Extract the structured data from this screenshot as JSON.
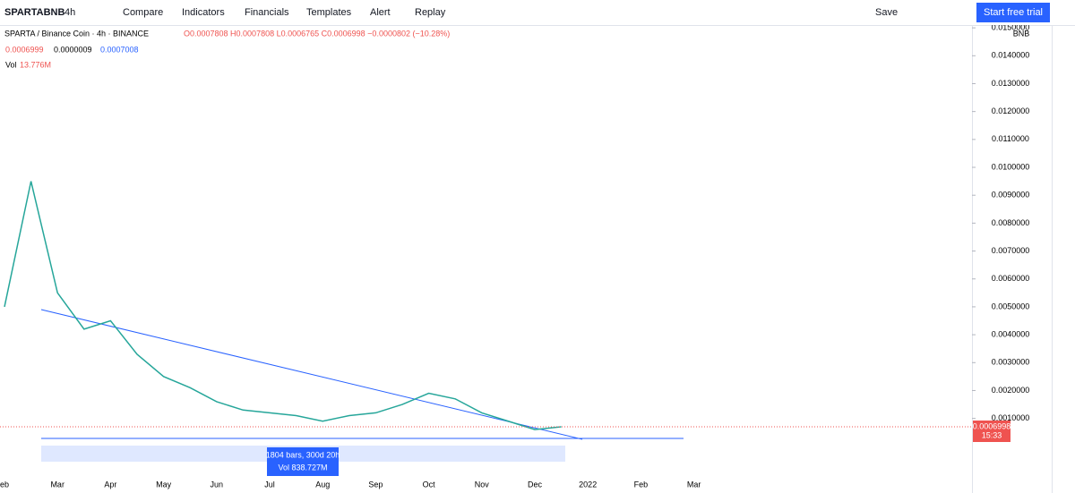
{
  "toolbar": {
    "symbol": "SPARTABNB",
    "interval": "4h",
    "compare": "Compare",
    "indicators": "Indicators",
    "financials": "Financials",
    "templates": "Templates",
    "alert": "Alert",
    "replay": "Replay",
    "save": "Save",
    "cta": "Start free trial"
  },
  "legend": {
    "title": "SPARTA / Binance Coin · 4h · BINANCE",
    "ohlc": "O0.0007808 H0.0007808 L0.0006765 C0.0006998 −0.0000802 (−10.28%)",
    "bid": "0.0006999",
    "spread": "0.0000009",
    "ask": "0.0007008",
    "volume": "Vol",
    "volume_value": "13.776M"
  },
  "chart_data": {
    "type": "line",
    "unit": "BNB",
    "color": "#26a69a",
    "categories": [
      "eb",
      null,
      "Mar",
      null,
      "Apr",
      null,
      "May",
      null,
      "Jun",
      null,
      "Jul",
      null,
      "Aug",
      null,
      "Sep",
      null,
      "Oct",
      null,
      "Nov",
      null,
      "Dec",
      null,
      "2022",
      null,
      "Feb",
      null,
      "Mar"
    ],
    "values": [
      0.005,
      0.0095,
      0.0055,
      0.0042,
      0.0045,
      0.0033,
      0.0025,
      0.0021,
      0.0016,
      0.0013,
      0.0012,
      0.0011,
      0.0009,
      0.0011,
      0.0012,
      0.0015,
      0.0019,
      0.0017,
      0.0012,
      0.0009,
      0.0006,
      0.0007,
      null,
      null,
      null,
      null,
      null
    ],
    "ylim": [
      -0.001,
      0.0151
    ],
    "yticks": [
      {
        "value": 0.015,
        "label": "0.0150000"
      },
      {
        "value": 0.014,
        "label": "0.0140000"
      },
      {
        "value": 0.013,
        "label": "0.0130000"
      },
      {
        "value": 0.012,
        "label": "0.0120000"
      },
      {
        "value": 0.011,
        "label": "0.0110000"
      },
      {
        "value": 0.01,
        "label": "0.0100000"
      },
      {
        "value": 0.009,
        "label": "0.0090000"
      },
      {
        "value": 0.008,
        "label": "0.0080000"
      },
      {
        "value": 0.007,
        "label": "0.0070000"
      },
      {
        "value": 0.006,
        "label": "0.0060000"
      },
      {
        "value": 0.005,
        "label": "0.0050000"
      },
      {
        "value": 0.004,
        "label": "0.0040000"
      },
      {
        "value": 0.003,
        "label": "0.0030000"
      },
      {
        "value": 0.002,
        "label": "0.0020000"
      },
      {
        "value": 0.001,
        "label": "0.0010000"
      }
    ],
    "last_price": {
      "value": 0.0006998,
      "label": "0.0006998"
    },
    "countdown": "15:33",
    "measure": {
      "text": "1804 bars, 300d 20h",
      "volume": "Vol 838.727M"
    }
  }
}
